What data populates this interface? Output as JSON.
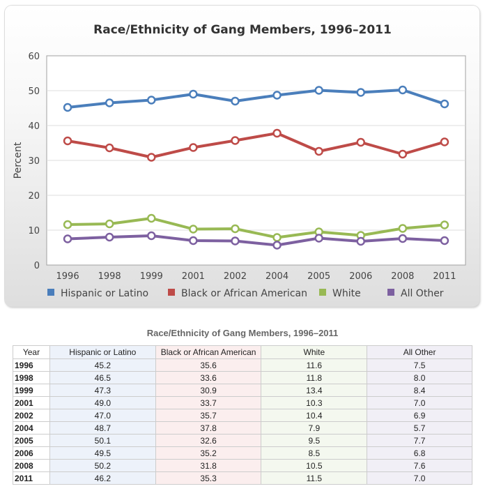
{
  "chart_data": {
    "type": "line",
    "title": "Race/Ethnicity of Gang Members, 1996–2011",
    "xlabel": "",
    "ylabel": "Percent",
    "ylim": [
      0,
      60
    ],
    "yticks": [
      "0",
      "10",
      "20",
      "30",
      "40",
      "50",
      "60"
    ],
    "grid": true,
    "legend_position": "bottom",
    "categories": [
      "1996",
      "1998",
      "1999",
      "2001",
      "2002",
      "2004",
      "2005",
      "2006",
      "2008",
      "2011"
    ],
    "series": [
      {
        "name": "Hispanic or Latino",
        "color": "#4a7ebb",
        "values": [
          45.2,
          46.5,
          47.3,
          49.0,
          47.0,
          48.7,
          50.1,
          49.5,
          50.2,
          46.2
        ]
      },
      {
        "name": "Black or African American",
        "color": "#be4b48",
        "values": [
          35.6,
          33.6,
          30.9,
          33.7,
          35.7,
          37.8,
          32.6,
          35.2,
          31.8,
          35.3
        ]
      },
      {
        "name": "White",
        "color": "#98b954",
        "values": [
          11.6,
          11.8,
          13.4,
          10.3,
          10.4,
          7.9,
          9.5,
          8.5,
          10.5,
          11.5
        ]
      },
      {
        "name": "All Other",
        "color": "#7d60a0",
        "values": [
          7.5,
          8.0,
          8.4,
          7.0,
          6.9,
          5.7,
          7.7,
          6.8,
          7.6,
          7.0
        ]
      }
    ]
  },
  "table": {
    "title": "Race/Ethnicity of Gang Members, 1996–2011",
    "headers": [
      "Year",
      "Hispanic or Latino",
      "Black or African American",
      "White",
      "All Other"
    ],
    "rows": [
      [
        "1996",
        "45.2",
        "35.6",
        "11.6",
        "7.5"
      ],
      [
        "1998",
        "46.5",
        "33.6",
        "11.8",
        "8.0"
      ],
      [
        "1999",
        "47.3",
        "30.9",
        "13.4",
        "8.4"
      ],
      [
        "2001",
        "49.0",
        "33.7",
        "10.3",
        "7.0"
      ],
      [
        "2002",
        "47.0",
        "35.7",
        "10.4",
        "6.9"
      ],
      [
        "2004",
        "48.7",
        "37.8",
        "7.9",
        "5.7"
      ],
      [
        "2005",
        "50.1",
        "32.6",
        "9.5",
        "7.7"
      ],
      [
        "2006",
        "49.5",
        "35.2",
        "8.5",
        "6.8"
      ],
      [
        "2008",
        "50.2",
        "31.8",
        "10.5",
        "7.6"
      ],
      [
        "2011",
        "46.2",
        "35.3",
        "11.5",
        "7.0"
      ]
    ]
  }
}
